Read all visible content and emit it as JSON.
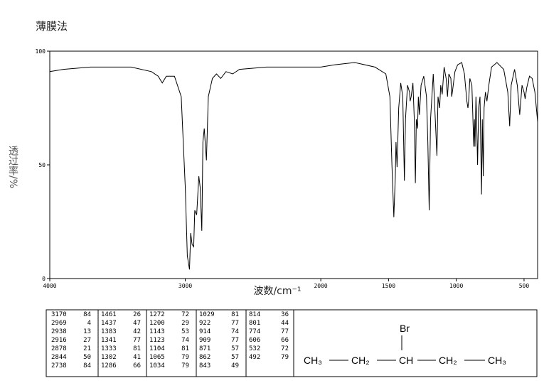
{
  "chart_data": {
    "type": "line",
    "title": "薄膜法",
    "xlabel": "波数/cm⁻¹",
    "ylabel": "透过率/%",
    "xlim": [
      4000,
      400
    ],
    "xticks": [
      4000,
      3000,
      2000,
      1500,
      1000,
      500
    ],
    "ylim": [
      0,
      100
    ],
    "yticks": [
      0,
      50,
      100
    ],
    "color": "#000000",
    "x": [
      4000,
      3900,
      3700,
      3400,
      3250,
      3200,
      3170,
      3140,
      3080,
      3030,
      3000,
      2985,
      2969,
      2960,
      2950,
      2938,
      2930,
      2916,
      2900,
      2890,
      2878,
      2870,
      2860,
      2844,
      2830,
      2800,
      2770,
      2738,
      2700,
      2650,
      2600,
      2400,
      2200,
      2000,
      1900,
      1750,
      1600,
      1520,
      1490,
      1475,
      1461,
      1450,
      1445,
      1437,
      1425,
      1410,
      1395,
      1383,
      1375,
      1360,
      1345,
      1341,
      1333,
      1320,
      1310,
      1302,
      1295,
      1286,
      1280,
      1272,
      1260,
      1240,
      1220,
      1210,
      1200,
      1190,
      1170,
      1155,
      1143,
      1135,
      1123,
      1115,
      1104,
      1090,
      1075,
      1065,
      1055,
      1040,
      1034,
      1029,
      1010,
      990,
      960,
      940,
      922,
      914,
      909,
      900,
      885,
      871,
      866,
      862,
      855,
      850,
      843,
      835,
      825,
      814,
      808,
      801,
      795,
      785,
      774,
      760,
      740,
      700,
      650,
      620,
      606,
      595,
      570,
      550,
      532,
      515,
      500,
      492,
      480,
      460,
      440,
      420,
      400
    ],
    "values": [
      91,
      92,
      93,
      93,
      91,
      89,
      86,
      89,
      89,
      80,
      40,
      10,
      4,
      20,
      15,
      14,
      30,
      28,
      45,
      40,
      21,
      60,
      66,
      52,
      80,
      88,
      90,
      88,
      91,
      90,
      92,
      93,
      93,
      93,
      94,
      95,
      93,
      90,
      80,
      50,
      27,
      45,
      60,
      49,
      75,
      86,
      80,
      43,
      70,
      85,
      82,
      78,
      80,
      86,
      70,
      42,
      70,
      66,
      80,
      72,
      85,
      89,
      80,
      60,
      30,
      70,
      90,
      70,
      54,
      80,
      75,
      85,
      81,
      93,
      88,
      80,
      90,
      88,
      80,
      82,
      91,
      94,
      95,
      90,
      78,
      75,
      78,
      88,
      85,
      58,
      70,
      58,
      80,
      70,
      50,
      75,
      80,
      37,
      70,
      45,
      75,
      82,
      78,
      85,
      93,
      95,
      92,
      82,
      67,
      85,
      92,
      85,
      72,
      85,
      82,
      79,
      84,
      89,
      88,
      82,
      69
    ]
  },
  "peak_table": [
    [
      3170,
      84
    ],
    [
      2969,
      4
    ],
    [
      2938,
      13
    ],
    [
      2916,
      27
    ],
    [
      2878,
      21
    ],
    [
      2844,
      50
    ],
    [
      2738,
      84
    ],
    [
      1461,
      26
    ],
    [
      1437,
      47
    ],
    [
      1383,
      42
    ],
    [
      1341,
      77
    ],
    [
      1333,
      81
    ],
    [
      1302,
      41
    ],
    [
      1286,
      66
    ],
    [
      1272,
      72
    ],
    [
      1200,
      29
    ],
    [
      1143,
      53
    ],
    [
      1123,
      74
    ],
    [
      1104,
      81
    ],
    [
      1065,
      79
    ],
    [
      1034,
      79
    ],
    [
      1029,
      81
    ],
    [
      922,
      77
    ],
    [
      914,
      74
    ],
    [
      909,
      77
    ],
    [
      871,
      57
    ],
    [
      862,
      57
    ],
    [
      843,
      49
    ],
    [
      814,
      36
    ],
    [
      801,
      44
    ],
    [
      774,
      77
    ],
    [
      606,
      66
    ],
    [
      532,
      72
    ],
    [
      492,
      79
    ]
  ],
  "structure": {
    "substituent": "Br",
    "groups": [
      "CH₃",
      "CH₂",
      "CH",
      "CH₂",
      "CH₃"
    ]
  }
}
